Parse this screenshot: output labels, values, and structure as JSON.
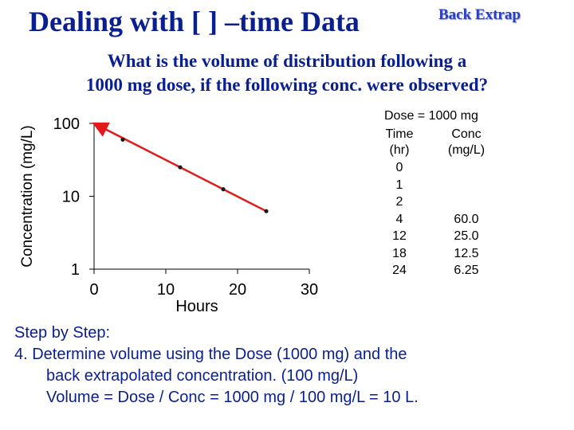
{
  "header": {
    "title": "Dealing with [ ] –time Data",
    "badge": "Back Extrap"
  },
  "question": {
    "line1": "What is the volume of distribution following a",
    "line2": "1000 mg dose, if the following conc. were observed?"
  },
  "chart_data": {
    "type": "scatter",
    "xlabel": "Hours",
    "ylabel": "Concentration (mg/L)",
    "xlim": [
      0,
      30
    ],
    "ylim": [
      1,
      100
    ],
    "yscale": "log",
    "x_ticks": [
      "0",
      "10",
      "20",
      "30"
    ],
    "y_ticks": [
      "1",
      "10",
      "100"
    ],
    "points": [
      {
        "x": 4,
        "y": 60
      },
      {
        "x": 12,
        "y": 25
      },
      {
        "x": 18,
        "y": 12.5
      },
      {
        "x": 24,
        "y": 6.25
      }
    ],
    "fit_line": {
      "x": [
        0,
        24
      ],
      "y": [
        100,
        6.25
      ],
      "color": "#e31a1c"
    },
    "marker_color": "#1a1a1a"
  },
  "table": {
    "dose": "Dose = 1000 mg",
    "headers": [
      [
        "Time",
        "(hr)"
      ],
      [
        "Conc",
        "(mg/L)"
      ]
    ],
    "rows": [
      [
        "0",
        ""
      ],
      [
        "1",
        ""
      ],
      [
        "2",
        ""
      ],
      [
        "4",
        "60.0"
      ],
      [
        "12",
        "25.0"
      ],
      [
        "18",
        "12.5"
      ],
      [
        "24",
        "6.25"
      ]
    ]
  },
  "steps": {
    "heading": "Step by Step:",
    "item_line1": "4.  Determine volume using the Dose (1000 mg) and the",
    "item_line2": "back extrapolated concentration. (100 mg/L)",
    "item_line3": "Volume = Dose / Conc = 1000 mg / 100 mg/L = 10 L."
  }
}
